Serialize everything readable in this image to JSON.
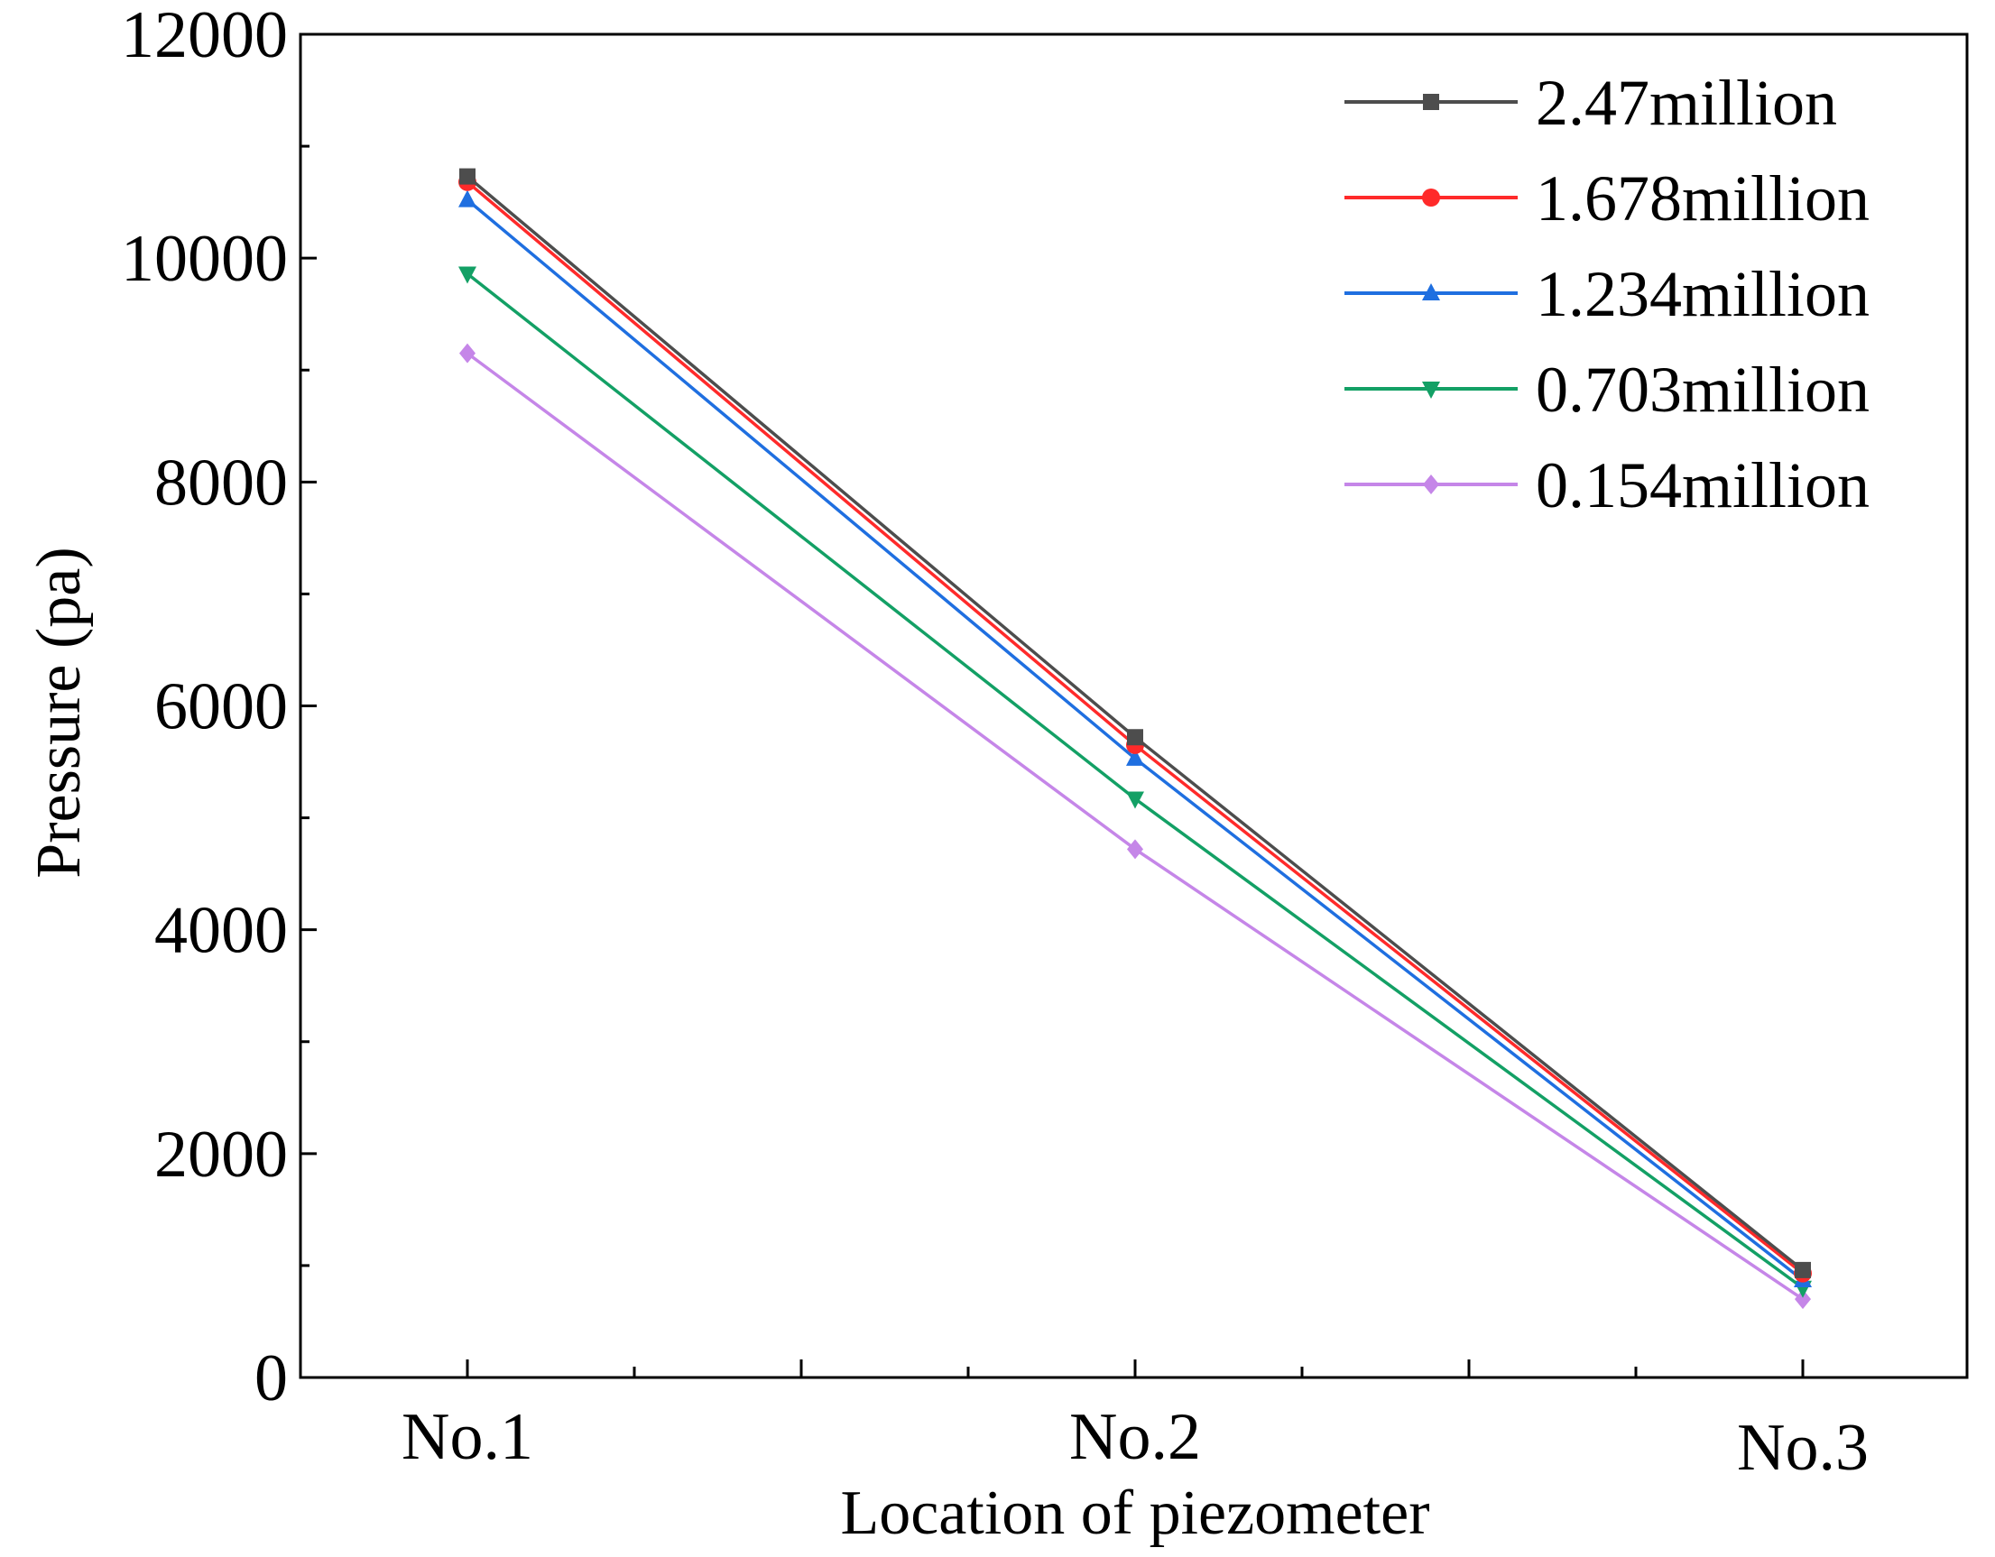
{
  "chart_data": {
    "type": "line",
    "title": "",
    "xlabel": "Location of  piezometer",
    "ylabel": "Pressure (pa)",
    "categories": [
      "No.1",
      "No.2",
      "No.3"
    ],
    "ylim": [
      0,
      12000
    ],
    "yticks": [
      0,
      2000,
      4000,
      6000,
      8000,
      10000,
      12000
    ],
    "ytick_labels": [
      "0",
      "2000",
      "4000",
      "6000",
      "8000",
      "10000",
      "12000"
    ],
    "grid": false,
    "legend_position": "top-right",
    "series": [
      {
        "name": "2.47million",
        "color": "#4d4d4d",
        "marker": "square",
        "values": [
          10730,
          5720,
          960
        ]
      },
      {
        "name": "1.678million",
        "color": "#ff2a2a",
        "marker": "circle",
        "values": [
          10680,
          5650,
          930
        ]
      },
      {
        "name": "1.234million",
        "color": "#1f6fe0",
        "marker": "triangle-up",
        "values": [
          10520,
          5530,
          870
        ]
      },
      {
        "name": "0.703million",
        "color": "#13a065",
        "marker": "triangle-down",
        "values": [
          9860,
          5170,
          800
        ]
      },
      {
        "name": "0.154million",
        "color": "#c586e8",
        "marker": "diamond",
        "values": [
          9150,
          4720,
          700
        ]
      }
    ]
  }
}
